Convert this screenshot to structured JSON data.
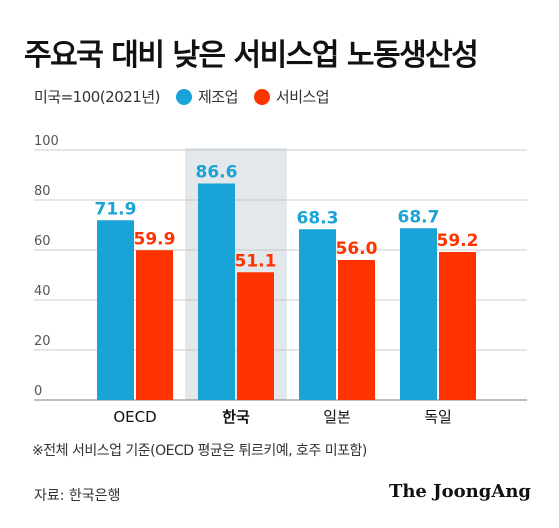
{
  "title": "주요국 대비 낮은 서비스업 노동생산성",
  "legend": {
    "unit_note": "미국=100(2021년)",
    "items": [
      {
        "label": "제조업",
        "color": "#1aa3d6"
      },
      {
        "label": "서비스업",
        "color": "#ff3300"
      }
    ]
  },
  "footnote": "※전체 서비스업 기준(OECD 평균은 튀르키예, 호주 미포함)",
  "source": "자료: 한국은행",
  "brand": "The JoongAng",
  "chart_data": {
    "type": "bar",
    "categories": [
      "OECD",
      "한국",
      "일본",
      "독일"
    ],
    "highlight_category": "한국",
    "series": [
      {
        "name": "제조업",
        "color": "#1aa3d6",
        "values": [
          71.9,
          86.6,
          68.3,
          68.7
        ]
      },
      {
        "name": "서비스업",
        "color": "#ff3300",
        "values": [
          59.9,
          51.1,
          56.0,
          59.2
        ]
      }
    ],
    "ylim": [
      0,
      100
    ],
    "yticks": [
      0,
      20,
      40,
      60,
      80,
      100
    ],
    "grid": true
  }
}
